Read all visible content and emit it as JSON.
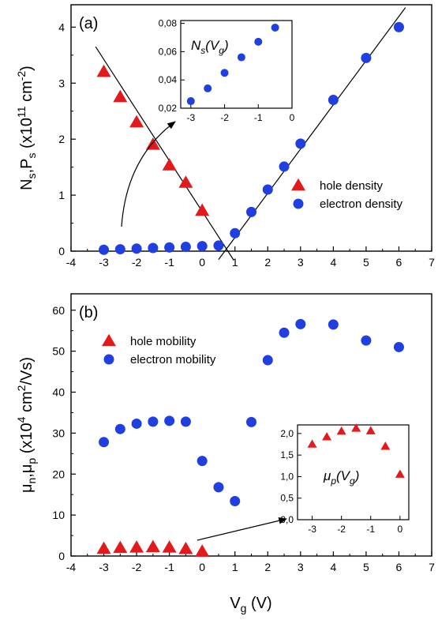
{
  "colors": {
    "hole": "#e31a1c",
    "electron": "#1f3fe0",
    "axis": "#000000"
  },
  "shared_xlabel": {
    "main": "V",
    "sub": "g",
    "unit": " (V)"
  },
  "chart_data": [
    {
      "id": "a",
      "type": "scatter",
      "panel_label": "(a)",
      "ylabel": {
        "p1": "N",
        "s1": "s",
        "p2": ",P",
        "s2": "s",
        "p3": " (x10",
        "sup": "11",
        "p4": " cm",
        "sup2": "-2",
        "p5": ")"
      },
      "xlim": [
        -4,
        7
      ],
      "ylim": [
        0,
        4.4
      ],
      "xticks": [
        -4,
        -3,
        -2,
        -1,
        0,
        1,
        2,
        3,
        4,
        5,
        6,
        7
      ],
      "yticks": [
        0,
        1,
        2,
        3,
        4
      ],
      "legend": {
        "position": "center-right",
        "items": [
          "hole density",
          "electron density"
        ]
      },
      "series": [
        {
          "name": "hole density",
          "marker": "triangle",
          "x": [
            -3,
            -2.5,
            -2,
            -1.5,
            -1,
            -0.5,
            0
          ],
          "y": [
            3.2,
            2.75,
            2.3,
            1.9,
            1.53,
            1.22,
            0.72
          ]
        },
        {
          "name": "electron density",
          "marker": "circle",
          "x": [
            -3,
            -2.5,
            -2,
            -1.5,
            -1,
            -0.5,
            0,
            0.5,
            1,
            1.5,
            2,
            2.5,
            3,
            4,
            5,
            6
          ],
          "y": [
            0.025,
            0.034,
            0.045,
            0.056,
            0.067,
            0.077,
            0.09,
            0.1,
            0.32,
            0.7,
            1.1,
            1.51,
            1.92,
            2.7,
            3.45,
            4.0
          ]
        }
      ],
      "fit_lines": [
        {
          "x": [
            -3.25,
            0.95
          ],
          "y": [
            3.65,
            -0.15
          ]
        },
        {
          "x": [
            0.5,
            6.2
          ],
          "y": [
            -0.15,
            4.35
          ]
        }
      ],
      "inset": {
        "title": {
          "main": "N",
          "sub": "s",
          "rest": "(V",
          "sub2": "g",
          "end": ")"
        },
        "xlim": [
          -3.3,
          0
        ],
        "ylim": [
          0.02,
          0.082
        ],
        "xticks": [
          -3,
          -2,
          -1,
          0
        ],
        "yticks": [
          0.02,
          0.04,
          0.06,
          0.08
        ],
        "ytick_labels": [
          "0,02",
          "0,04",
          "0,06",
          "0,08"
        ],
        "series": [
          {
            "marker": "circle",
            "x": [
              -3,
              -2.5,
              -2,
              -1.5,
              -1,
              -0.5
            ],
            "y": [
              0.025,
              0.034,
              0.045,
              0.056,
              0.067,
              0.077
            ]
          }
        ]
      }
    },
    {
      "id": "b",
      "type": "scatter",
      "panel_label": "(b)",
      "ylabel": {
        "p1": "μ",
        "s1": "n",
        "p2": ",μ",
        "s2": "p",
        "p3": " (x10",
        "sup": "4",
        "p4": " cm",
        "sup2": "2",
        "p5": "/Vs)"
      },
      "xlim": [
        -4,
        7
      ],
      "ylim": [
        0,
        64
      ],
      "xticks": [
        -4,
        -3,
        -2,
        -1,
        0,
        1,
        2,
        3,
        4,
        5,
        6,
        7
      ],
      "yticks": [
        0,
        10,
        20,
        30,
        40,
        50,
        60
      ],
      "legend": {
        "position": "top-left",
        "items": [
          "hole mobility",
          "electron mobility"
        ]
      },
      "series": [
        {
          "name": "hole mobility",
          "marker": "triangle",
          "x": [
            -3,
            -2.5,
            -2,
            -1.5,
            -1,
            -0.5,
            0
          ],
          "y": [
            1.75,
            1.95,
            2.05,
            2.15,
            2.05,
            1.7,
            1.05
          ]
        },
        {
          "name": "electron mobility",
          "marker": "circle",
          "x": [
            -3,
            -2.5,
            -2,
            -1.5,
            -1,
            -0.5,
            0,
            0.5,
            1,
            1.5,
            2,
            2.5,
            3,
            4,
            5,
            6
          ],
          "y": [
            27.8,
            31,
            32.3,
            32.8,
            33,
            32.8,
            23.2,
            16.8,
            13.4,
            32.7,
            47.8,
            54.5,
            56.6,
            56.5,
            52.6,
            51
          ]
        }
      ],
      "inset": {
        "title": {
          "main": "μ",
          "sub": "p",
          "rest": "(V",
          "sub2": "g",
          "end": ")"
        },
        "xlim": [
          -3.5,
          0.3
        ],
        "ylim": [
          0,
          2.2
        ],
        "xticks": [
          -3,
          -2,
          -1,
          0
        ],
        "yticks": [
          0,
          0.5,
          1,
          1.5,
          2
        ],
        "ytick_labels": [
          "0,0",
          "0,5",
          "1,0",
          "1,5",
          "2,0"
        ],
        "series": [
          {
            "marker": "triangle",
            "x": [
              -3,
              -2.5,
              -2,
              -1.5,
              -1,
              -0.5,
              0
            ],
            "y": [
              1.75,
              1.92,
              2.05,
              2.12,
              2.06,
              1.7,
              1.05
            ]
          }
        ]
      }
    }
  ]
}
